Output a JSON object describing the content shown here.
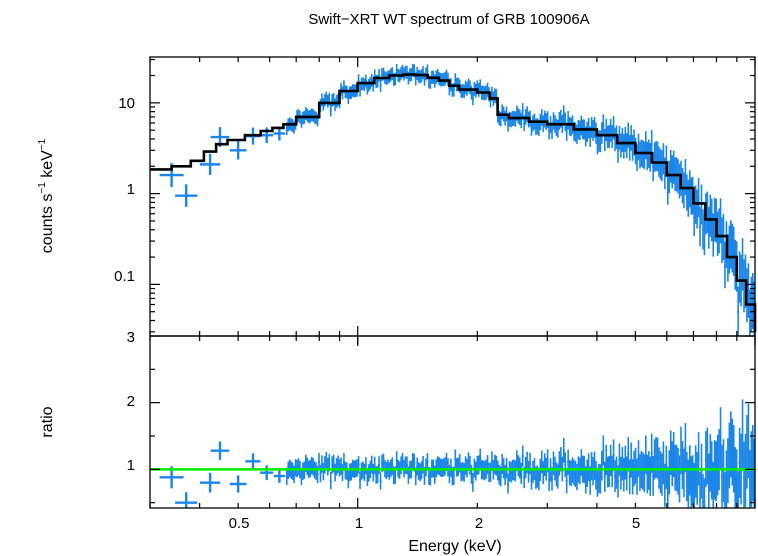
{
  "chart_data": {
    "type": "scatter",
    "title": "Swift−XRT WT spectrum of GRB 100906A",
    "xlabel": "Energy (keV)",
    "xscale": "log",
    "xlim": [
      0.3,
      10
    ],
    "x_ticks": [
      {
        "value": 0.5,
        "label": "0.5"
      },
      {
        "value": 1,
        "label": "1"
      },
      {
        "value": 2,
        "label": "2"
      },
      {
        "value": 5,
        "label": "5"
      }
    ],
    "colors": {
      "data": "#1b86e8",
      "model": "#000000",
      "ratio_line": "#00ee00"
    },
    "panels": [
      {
        "name": "spectrum",
        "ylabel_main": "counts s",
        "ylabel_exp1": "−1",
        "ylabel_mid": " keV",
        "ylabel_exp2": "−1",
        "yscale": "log",
        "ylim": [
          0.027,
          32
        ],
        "y_ticks": [
          {
            "value": 0.1,
            "label": "0.1"
          },
          {
            "value": 1,
            "label": "1"
          },
          {
            "value": 10,
            "label": "10"
          }
        ],
        "binned_points": [
          {
            "x": 0.34,
            "y": 1.6
          },
          {
            "x": 0.37,
            "y": 0.95
          },
          {
            "x": 0.425,
            "y": 2.1
          },
          {
            "x": 0.45,
            "y": 4.2
          },
          {
            "x": 0.5,
            "y": 3.0
          },
          {
            "x": 0.545,
            "y": 4.3
          },
          {
            "x": 0.59,
            "y": 4.4
          },
          {
            "x": 0.635,
            "y": 4.6
          }
        ],
        "model_step": [
          {
            "x": 0.3,
            "y": 1.85
          },
          {
            "x": 0.34,
            "y": 2.0
          },
          {
            "x": 0.38,
            "y": 2.3
          },
          {
            "x": 0.41,
            "y": 2.9
          },
          {
            "x": 0.44,
            "y": 3.5
          },
          {
            "x": 0.47,
            "y": 3.9
          },
          {
            "x": 0.52,
            "y": 4.4
          },
          {
            "x": 0.57,
            "y": 4.9
          },
          {
            "x": 0.61,
            "y": 5.3
          },
          {
            "x": 0.65,
            "y": 5.8
          },
          {
            "x": 0.7,
            "y": 7.0
          },
          {
            "x": 0.8,
            "y": 10.0
          },
          {
            "x": 0.9,
            "y": 13.5
          },
          {
            "x": 1.0,
            "y": 16.5
          },
          {
            "x": 1.1,
            "y": 18.8
          },
          {
            "x": 1.2,
            "y": 20.0
          },
          {
            "x": 1.3,
            "y": 20.5
          },
          {
            "x": 1.4,
            "y": 20.2
          },
          {
            "x": 1.5,
            "y": 18.9
          },
          {
            "x": 1.6,
            "y": 17.6
          },
          {
            "x": 1.7,
            "y": 15.4
          },
          {
            "x": 1.8,
            "y": 14.0
          },
          {
            "x": 2.0,
            "y": 13.0
          },
          {
            "x": 2.15,
            "y": 11.2
          },
          {
            "x": 2.25,
            "y": 7.4
          },
          {
            "x": 2.4,
            "y": 6.8
          },
          {
            "x": 2.7,
            "y": 6.2
          },
          {
            "x": 3.0,
            "y": 5.8
          },
          {
            "x": 3.5,
            "y": 5.1
          },
          {
            "x": 4.0,
            "y": 4.4
          },
          {
            "x": 4.5,
            "y": 3.6
          },
          {
            "x": 5.0,
            "y": 2.8
          },
          {
            "x": 5.5,
            "y": 2.2
          },
          {
            "x": 6.0,
            "y": 1.6
          },
          {
            "x": 6.5,
            "y": 1.15
          },
          {
            "x": 7.0,
            "y": 0.78
          },
          {
            "x": 7.5,
            "y": 0.52
          },
          {
            "x": 8.0,
            "y": 0.34
          },
          {
            "x": 8.5,
            "y": 0.2
          },
          {
            "x": 9.0,
            "y": 0.11
          },
          {
            "x": 9.5,
            "y": 0.06
          },
          {
            "x": 10.0,
            "y": 0.03
          }
        ],
        "noisy_data": {
          "x_range": [
            0.66,
            10.0
          ],
          "n_bins": 320,
          "scatter_dex": 0.06,
          "error_dex": 0.07
        }
      },
      {
        "name": "ratio",
        "ylabel": "ratio",
        "yscale": "linear",
        "ylim": [
          0.42,
          3.0
        ],
        "y_ticks": [
          {
            "value": 1,
            "label": "1"
          },
          {
            "value": 2,
            "label": "2"
          },
          {
            "value": 3,
            "label": "3"
          }
        ],
        "reference_line": 1.0,
        "binned_points": [
          {
            "x": 0.34,
            "y": 0.88
          },
          {
            "x": 0.37,
            "y": 0.5
          },
          {
            "x": 0.425,
            "y": 0.8
          },
          {
            "x": 0.45,
            "y": 1.28
          },
          {
            "x": 0.5,
            "y": 0.78
          },
          {
            "x": 0.545,
            "y": 1.12
          },
          {
            "x": 0.59,
            "y": 0.95
          },
          {
            "x": 0.635,
            "y": 0.9
          }
        ],
        "noisy_data": {
          "x_range": [
            0.66,
            10.0
          ],
          "n_bins": 320,
          "scatter": 0.1,
          "error": 0.13
        }
      }
    ]
  }
}
